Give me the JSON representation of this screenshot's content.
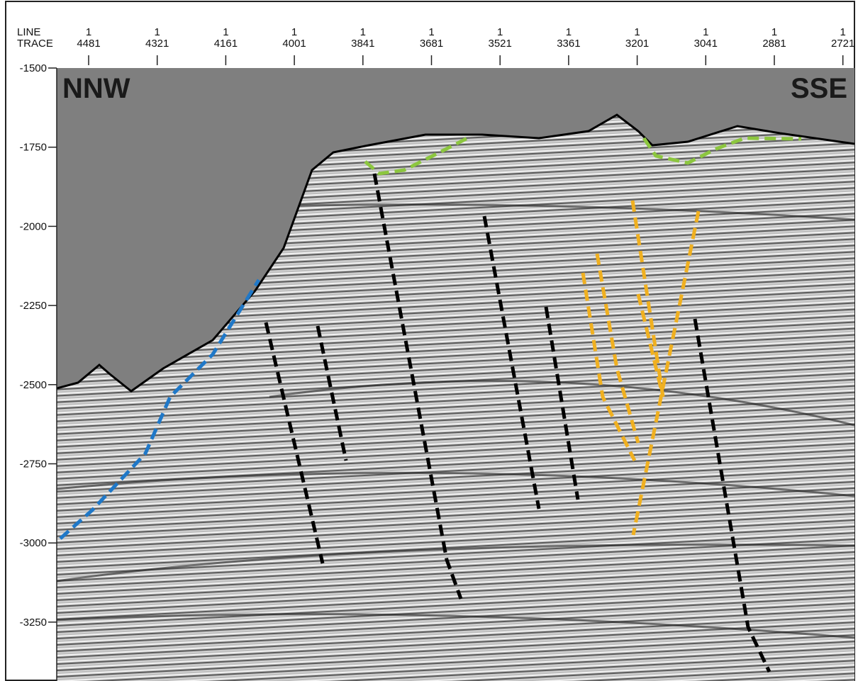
{
  "header": {
    "line_label": "LINE",
    "trace_label": "TRACE"
  },
  "traces": [
    {
      "line": "1",
      "trace": "4481"
    },
    {
      "line": "1",
      "trace": "4321"
    },
    {
      "line": "1",
      "trace": "4161"
    },
    {
      "line": "1",
      "trace": "4001"
    },
    {
      "line": "1",
      "trace": "3841"
    },
    {
      "line": "1",
      "trace": "3681"
    },
    {
      "line": "1",
      "trace": "3521"
    },
    {
      "line": "1",
      "trace": "3361"
    },
    {
      "line": "1",
      "trace": "3201"
    },
    {
      "line": "1",
      "trace": "3041"
    },
    {
      "line": "1",
      "trace": "2881"
    },
    {
      "line": "1",
      "trace": "2721"
    }
  ],
  "depths": [
    "-1500",
    "-1750",
    "-2000",
    "-2250",
    "-2500",
    "-2750",
    "-3000",
    "-3250"
  ],
  "labels": {
    "left": "NNW",
    "right": "SSE"
  }
}
